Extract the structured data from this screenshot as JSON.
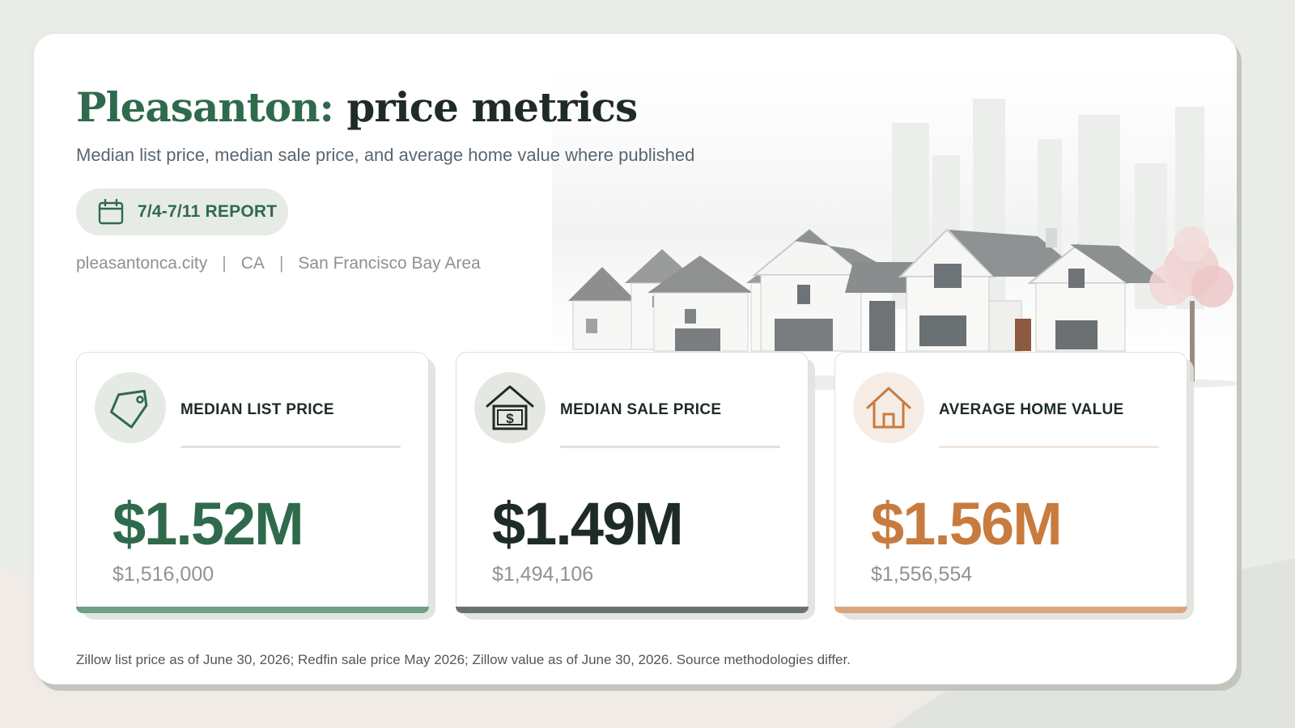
{
  "header": {
    "title_city": "Pleasanton:",
    "title_rest": "price metrics",
    "subtitle": "Median list price, median sale price, and average home value where published",
    "report_label": "7/4-7/11 REPORT",
    "report_icon": "calendar-icon"
  },
  "meta": {
    "website": "pleasantonca.city",
    "state": "CA",
    "region": "San Francisco Bay Area",
    "separator": "|"
  },
  "metrics": [
    {
      "label": "MEDIAN LIST PRICE",
      "value": "$1.52M",
      "exact": "$1,516,000",
      "icon": "price-tag-icon",
      "accent": "#2f6a4c",
      "bar_color": "#6f9f84",
      "icon_bg": "#e6eae5",
      "rule_color": "#e3e1da"
    },
    {
      "label": "MEDIAN SALE PRICE",
      "value": "$1.49M",
      "exact": "$1,494,106",
      "icon": "house-dollar-icon",
      "accent": "#1e2b26",
      "bar_color": "#6b716e",
      "icon_bg": "#e5e7e3",
      "rule_color": "#dfe0dd"
    },
    {
      "label": "AVERAGE HOME VALUE",
      "value": "$1.56M",
      "exact": "$1,556,554",
      "icon": "house-icon",
      "accent": "#c87b3e",
      "bar_color": "#dba57b",
      "icon_bg": "#f5ece6",
      "rule_color": "#f0e6df"
    }
  ],
  "footnote": "Zillow list price as of June 30, 2026; Redfin sale price May 2026; Zillow value as of June 30, 2026. Source methodologies differ."
}
